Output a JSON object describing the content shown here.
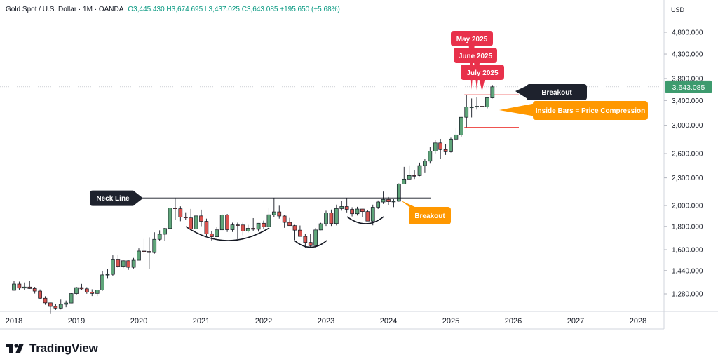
{
  "header": {
    "symbol": "Gold Spot / U.S. Dollar · 1M · OANDA",
    "ohlc": "O3,445.430  H3,674.695  L3,437.025  C3,643.085  +195.650 (+5.68%)"
  },
  "axis": {
    "currency": "USD"
  },
  "brand": {
    "name": "TradingView"
  },
  "annotations": {
    "neck_line": "Neck Line",
    "breakout_left": "Breakout",
    "breakout_right": "Breakout",
    "inside_bars": "Inside Bars = Price Compression",
    "may": "May 2025",
    "june": "June 2025",
    "july": "July 2025"
  },
  "colors": {
    "up": "#5fa57a",
    "down": "#d9534f",
    "last_price_badge": "#3d9b6e",
    "callout_red": "#e8314b",
    "callout_orange": "#ff9800",
    "callout_dark": "#1e222d"
  },
  "chart_data": {
    "type": "candlestick",
    "scale": "log",
    "interval": "1M",
    "last_price": "3,643.085",
    "y_ticks": [
      "4,800.000",
      "4,300.000",
      "3,800.000",
      "3,400.000",
      "3,000.000",
      "2,600.000",
      "2,300.000",
      "2,000.000",
      "1,800.000",
      "1,600.000",
      "1,440.000",
      "1,280.000"
    ],
    "y_tick_values": [
      4800,
      4300,
      3800,
      3400,
      3000,
      2600,
      2300,
      2000,
      1800,
      1600,
      1440,
      1280
    ],
    "x_ticks": [
      "2018",
      "2019",
      "2020",
      "2021",
      "2022",
      "2023",
      "2024",
      "2025",
      "2026",
      "2027",
      "2028"
    ],
    "neck_line_value": 2075,
    "candles": [
      {
        "t": "2018-01",
        "o": 1303,
        "h": 1366,
        "l": 1302,
        "c": 1345
      },
      {
        "t": "2018-02",
        "o": 1345,
        "h": 1362,
        "l": 1307,
        "c": 1318
      },
      {
        "t": "2018-03",
        "o": 1318,
        "h": 1356,
        "l": 1303,
        "c": 1325
      },
      {
        "t": "2018-04",
        "o": 1325,
        "h": 1365,
        "l": 1313,
        "c": 1315
      },
      {
        "t": "2018-05",
        "o": 1315,
        "h": 1326,
        "l": 1282,
        "c": 1298
      },
      {
        "t": "2018-06",
        "o": 1298,
        "h": 1309,
        "l": 1246,
        "c": 1252
      },
      {
        "t": "2018-07",
        "o": 1252,
        "h": 1265,
        "l": 1211,
        "c": 1223
      },
      {
        "t": "2018-08",
        "o": 1223,
        "h": 1225,
        "l": 1160,
        "c": 1201
      },
      {
        "t": "2018-09",
        "o": 1201,
        "h": 1214,
        "l": 1180,
        "c": 1191
      },
      {
        "t": "2018-10",
        "o": 1191,
        "h": 1243,
        "l": 1183,
        "c": 1214
      },
      {
        "t": "2018-11",
        "o": 1214,
        "h": 1237,
        "l": 1196,
        "c": 1222
      },
      {
        "t": "2018-12",
        "o": 1222,
        "h": 1284,
        "l": 1221,
        "c": 1282
      },
      {
        "t": "2019-01",
        "o": 1282,
        "h": 1326,
        "l": 1276,
        "c": 1321
      },
      {
        "t": "2019-02",
        "o": 1321,
        "h": 1346,
        "l": 1303,
        "c": 1313
      },
      {
        "t": "2019-03",
        "o": 1313,
        "h": 1324,
        "l": 1281,
        "c": 1292
      },
      {
        "t": "2019-04",
        "o": 1292,
        "h": 1310,
        "l": 1266,
        "c": 1283
      },
      {
        "t": "2019-05",
        "o": 1283,
        "h": 1306,
        "l": 1266,
        "c": 1305
      },
      {
        "t": "2019-06",
        "o": 1305,
        "h": 1439,
        "l": 1300,
        "c": 1409
      },
      {
        "t": "2019-07",
        "o": 1409,
        "h": 1452,
        "l": 1382,
        "c": 1413
      },
      {
        "t": "2019-08",
        "o": 1413,
        "h": 1555,
        "l": 1400,
        "c": 1520
      },
      {
        "t": "2019-09",
        "o": 1520,
        "h": 1557,
        "l": 1459,
        "c": 1472
      },
      {
        "t": "2019-10",
        "o": 1472,
        "h": 1517,
        "l": 1458,
        "c": 1513
      },
      {
        "t": "2019-11",
        "o": 1513,
        "h": 1516,
        "l": 1445,
        "c": 1464
      },
      {
        "t": "2019-12",
        "o": 1464,
        "h": 1535,
        "l": 1455,
        "c": 1517
      },
      {
        "t": "2020-01",
        "o": 1517,
        "h": 1611,
        "l": 1517,
        "c": 1589
      },
      {
        "t": "2020-02",
        "o": 1589,
        "h": 1689,
        "l": 1563,
        "c": 1586
      },
      {
        "t": "2020-03",
        "o": 1586,
        "h": 1703,
        "l": 1451,
        "c": 1577
      },
      {
        "t": "2020-04",
        "o": 1577,
        "h": 1747,
        "l": 1568,
        "c": 1686
      },
      {
        "t": "2020-05",
        "o": 1686,
        "h": 1765,
        "l": 1670,
        "c": 1730
      },
      {
        "t": "2020-06",
        "o": 1730,
        "h": 1786,
        "l": 1671,
        "c": 1781
      },
      {
        "t": "2020-07",
        "o": 1781,
        "h": 1984,
        "l": 1757,
        "c": 1975
      },
      {
        "t": "2020-08",
        "o": 1975,
        "h": 2075,
        "l": 1863,
        "c": 1968
      },
      {
        "t": "2020-09",
        "o": 1968,
        "h": 1992,
        "l": 1848,
        "c": 1886
      },
      {
        "t": "2020-10",
        "o": 1886,
        "h": 1933,
        "l": 1860,
        "c": 1879
      },
      {
        "t": "2020-11",
        "o": 1879,
        "h": 1966,
        "l": 1764,
        "c": 1776
      },
      {
        "t": "2020-12",
        "o": 1776,
        "h": 1906,
        "l": 1775,
        "c": 1898
      },
      {
        "t": "2021-01",
        "o": 1898,
        "h": 1959,
        "l": 1802,
        "c": 1847
      },
      {
        "t": "2021-02",
        "o": 1847,
        "h": 1872,
        "l": 1717,
        "c": 1734
      },
      {
        "t": "2021-03",
        "o": 1734,
        "h": 1755,
        "l": 1677,
        "c": 1708
      },
      {
        "t": "2021-04",
        "o": 1708,
        "h": 1798,
        "l": 1705,
        "c": 1769
      },
      {
        "t": "2021-05",
        "o": 1769,
        "h": 1913,
        "l": 1766,
        "c": 1907
      },
      {
        "t": "2021-06",
        "o": 1907,
        "h": 1917,
        "l": 1750,
        "c": 1770
      },
      {
        "t": "2021-07",
        "o": 1770,
        "h": 1834,
        "l": 1750,
        "c": 1814
      },
      {
        "t": "2021-08",
        "o": 1814,
        "h": 1834,
        "l": 1688,
        "c": 1813
      },
      {
        "t": "2021-09",
        "o": 1813,
        "h": 1834,
        "l": 1721,
        "c": 1757
      },
      {
        "t": "2021-10",
        "o": 1757,
        "h": 1814,
        "l": 1746,
        "c": 1783
      },
      {
        "t": "2021-11",
        "o": 1783,
        "h": 1877,
        "l": 1758,
        "c": 1774
      },
      {
        "t": "2021-12",
        "o": 1774,
        "h": 1831,
        "l": 1753,
        "c": 1829
      },
      {
        "t": "2022-01",
        "o": 1829,
        "h": 1853,
        "l": 1780,
        "c": 1797
      },
      {
        "t": "2022-02",
        "o": 1797,
        "h": 1974,
        "l": 1782,
        "c": 1909
      },
      {
        "t": "2022-03",
        "o": 1909,
        "h": 2070,
        "l": 1890,
        "c": 1937
      },
      {
        "t": "2022-04",
        "o": 1937,
        "h": 1998,
        "l": 1872,
        "c": 1897
      },
      {
        "t": "2022-05",
        "o": 1897,
        "h": 1910,
        "l": 1787,
        "c": 1837
      },
      {
        "t": "2022-06",
        "o": 1837,
        "h": 1879,
        "l": 1805,
        "c": 1807
      },
      {
        "t": "2022-07",
        "o": 1807,
        "h": 1814,
        "l": 1681,
        "c": 1766
      },
      {
        "t": "2022-08",
        "o": 1766,
        "h": 1808,
        "l": 1709,
        "c": 1711
      },
      {
        "t": "2022-09",
        "o": 1711,
        "h": 1735,
        "l": 1615,
        "c": 1660
      },
      {
        "t": "2022-10",
        "o": 1660,
        "h": 1730,
        "l": 1617,
        "c": 1633
      },
      {
        "t": "2022-11",
        "o": 1633,
        "h": 1786,
        "l": 1616,
        "c": 1768
      },
      {
        "t": "2022-12",
        "o": 1768,
        "h": 1833,
        "l": 1766,
        "c": 1824
      },
      {
        "t": "2023-01",
        "o": 1824,
        "h": 1949,
        "l": 1804,
        "c": 1928
      },
      {
        "t": "2023-02",
        "o": 1928,
        "h": 1960,
        "l": 1804,
        "c": 1826
      },
      {
        "t": "2023-03",
        "o": 1826,
        "h": 2009,
        "l": 1809,
        "c": 1969
      },
      {
        "t": "2023-04",
        "o": 1969,
        "h": 2048,
        "l": 1949,
        "c": 1990
      },
      {
        "t": "2023-05",
        "o": 1990,
        "h": 2079,
        "l": 1932,
        "c": 1962
      },
      {
        "t": "2023-06",
        "o": 1962,
        "h": 1983,
        "l": 1893,
        "c": 1919
      },
      {
        "t": "2023-07",
        "o": 1919,
        "h": 1987,
        "l": 1902,
        "c": 1965
      },
      {
        "t": "2023-08",
        "o": 1965,
        "h": 1966,
        "l": 1884,
        "c": 1940
      },
      {
        "t": "2023-09",
        "o": 1940,
        "h": 1953,
        "l": 1847,
        "c": 1849
      },
      {
        "t": "2023-10",
        "o": 1849,
        "h": 2009,
        "l": 1810,
        "c": 1983
      },
      {
        "t": "2023-11",
        "o": 1983,
        "h": 2052,
        "l": 1965,
        "c": 2036
      },
      {
        "t": "2023-12",
        "o": 2036,
        "h": 2146,
        "l": 2016,
        "c": 2062
      },
      {
        "t": "2024-01",
        "o": 2062,
        "h": 2088,
        "l": 2001,
        "c": 2039
      },
      {
        "t": "2024-02",
        "o": 2039,
        "h": 2065,
        "l": 1984,
        "c": 2044
      },
      {
        "t": "2024-03",
        "o": 2044,
        "h": 2236,
        "l": 2039,
        "c": 2230
      },
      {
        "t": "2024-04",
        "o": 2230,
        "h": 2432,
        "l": 2228,
        "c": 2286
      },
      {
        "t": "2024-05",
        "o": 2286,
        "h": 2450,
        "l": 2277,
        "c": 2327
      },
      {
        "t": "2024-06",
        "o": 2327,
        "h": 2388,
        "l": 2287,
        "c": 2326
      },
      {
        "t": "2024-07",
        "o": 2326,
        "h": 2484,
        "l": 2319,
        "c": 2447
      },
      {
        "t": "2024-08",
        "o": 2447,
        "h": 2531,
        "l": 2364,
        "c": 2503
      },
      {
        "t": "2024-09",
        "o": 2503,
        "h": 2685,
        "l": 2472,
        "c": 2634
      },
      {
        "t": "2024-10",
        "o": 2634,
        "h": 2790,
        "l": 2603,
        "c": 2744
      },
      {
        "t": "2024-11",
        "o": 2744,
        "h": 2801,
        "l": 2536,
        "c": 2653
      },
      {
        "t": "2024-12",
        "o": 2653,
        "h": 2726,
        "l": 2583,
        "c": 2624
      },
      {
        "t": "2025-01",
        "o": 2624,
        "h": 2817,
        "l": 2614,
        "c": 2798
      },
      {
        "t": "2025-02",
        "o": 2798,
        "h": 2956,
        "l": 2772,
        "c": 2858
      },
      {
        "t": "2025-03",
        "o": 2858,
        "h": 3128,
        "l": 2833,
        "c": 3124
      },
      {
        "t": "2025-04",
        "o": 3124,
        "h": 3500,
        "l": 2970,
        "c": 3289
      },
      {
        "t": "2025-05",
        "o": 3289,
        "h": 3435,
        "l": 3121,
        "c": 3289
      },
      {
        "t": "2025-06",
        "o": 3289,
        "h": 3452,
        "l": 3247,
        "c": 3303
      },
      {
        "t": "2025-07",
        "o": 3303,
        "h": 3439,
        "l": 3268,
        "c": 3290
      },
      {
        "t": "2025-08",
        "o": 3290,
        "h": 3451,
        "l": 3268,
        "c": 3447
      },
      {
        "t": "2025-09",
        "o": 3445,
        "h": 3675,
        "l": 3437,
        "c": 3643
      }
    ]
  }
}
